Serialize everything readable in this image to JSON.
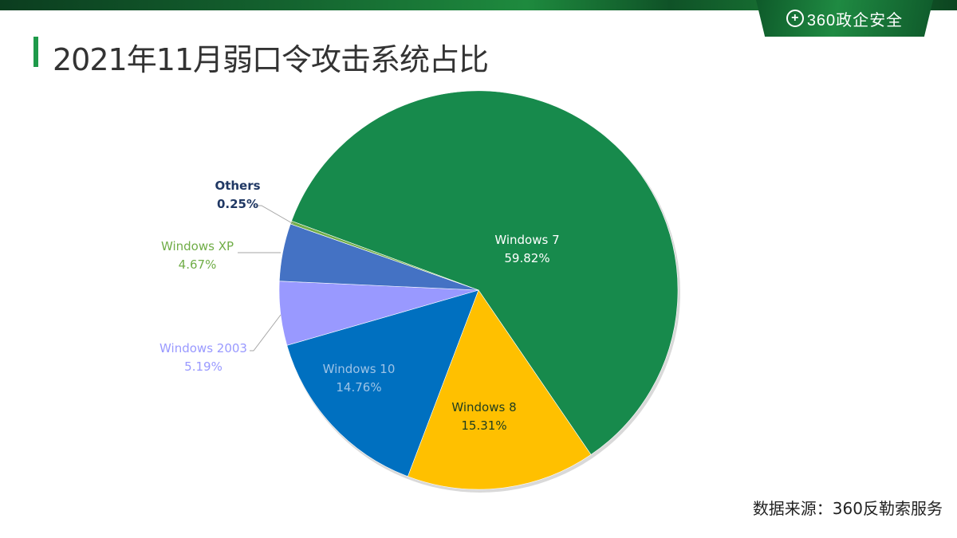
{
  "header": {
    "brand_logo_icon": "plus-circle-icon",
    "brand_text": "360政企安全",
    "title": "2021年11月弱口令攻击系统占比"
  },
  "footer": {
    "source": "数据来源：360反勒索服务"
  },
  "labels": {
    "win7_name": "Windows 7",
    "win7_value": "59.82%",
    "win8_name": "Windows 8",
    "win8_value": "15.31%",
    "win10_name": "Windows 10",
    "win10_value": "14.76%",
    "win2003_name": "Windows 2003",
    "win2003_value": "5.19%",
    "winxp_name": "Windows XP",
    "winxp_value": "4.67%",
    "others_name": "Others",
    "others_value": "0.25%"
  },
  "chart_data": {
    "type": "pie",
    "title": "2021年11月弱口令攻击系统占比",
    "categories": [
      "Windows 7",
      "Windows 8",
      "Windows 10",
      "Windows 2003",
      "Windows XP",
      "Others"
    ],
    "values": [
      59.82,
      15.31,
      14.76,
      5.19,
      4.67,
      0.25
    ],
    "unit": "%",
    "colors": [
      "#178a4c",
      "#ffc000",
      "#0070c0",
      "#9999ff",
      "#4472c4",
      "#70ad47"
    ],
    "label_colors": [
      "#ffffff",
      "#1f3d1f",
      "#9dc3e6",
      "#9999ff",
      "#70ad47",
      "#203864"
    ],
    "start_angle_deg_clockwise_from_east": 200.3,
    "direction": "clockwise",
    "legend": "none (data labels)",
    "source": "数据来源：360反勒索服务"
  }
}
